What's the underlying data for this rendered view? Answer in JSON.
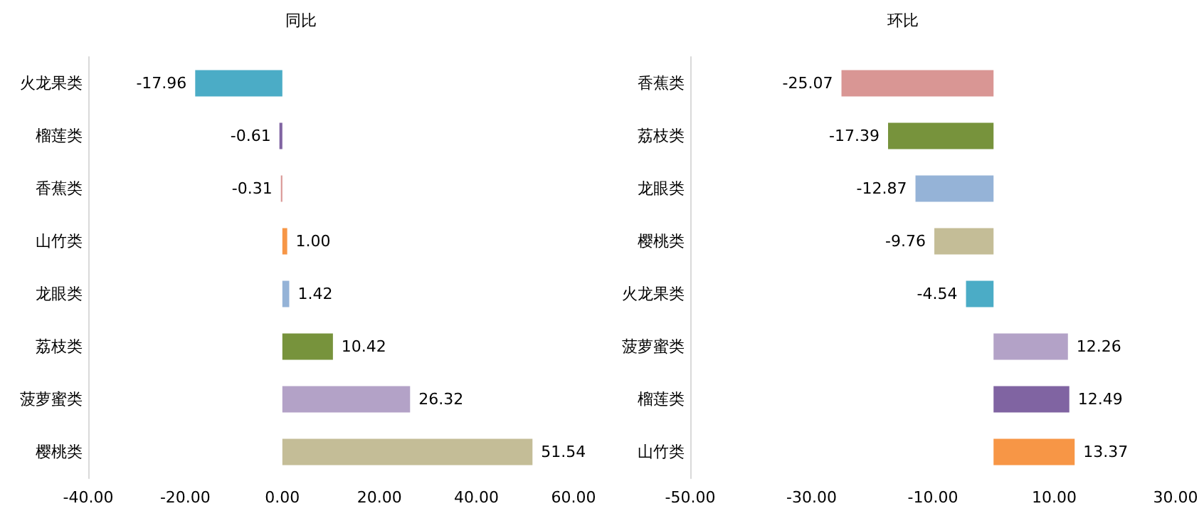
{
  "chart_data": [
    {
      "type": "bar",
      "title": "同比",
      "orientation": "horizontal",
      "grid": false,
      "categories": [
        "火龙果类",
        "榴莲类",
        "香蕉类",
        "山竹类",
        "龙眼类",
        "荔枝类",
        "菠萝蜜类",
        "樱桃类"
      ],
      "values": [
        -17.96,
        -0.61,
        -0.31,
        1.0,
        1.42,
        10.42,
        26.32,
        51.54
      ],
      "value_labels": [
        "-17.96",
        "-0.61",
        "-0.31",
        "1.00",
        "1.42",
        "10.42",
        "26.32",
        "51.54"
      ],
      "colors": [
        "#4bacc6",
        "#8064a2",
        "#d99694",
        "#f79646",
        "#95b3d7",
        "#77933c",
        "#b3a2c7",
        "#c4bd97"
      ],
      "xlim": [
        -40,
        60
      ],
      "xticks": [
        {
          "value": -40,
          "label": "-40.00"
        },
        {
          "value": -20,
          "label": "-20.00"
        },
        {
          "value": 0,
          "label": "0.00"
        },
        {
          "value": 20,
          "label": "20.00"
        },
        {
          "value": 40,
          "label": "40.00"
        },
        {
          "value": 60,
          "label": "60.00"
        }
      ]
    },
    {
      "type": "bar",
      "title": "环比",
      "orientation": "horizontal",
      "grid": false,
      "categories": [
        "香蕉类",
        "荔枝类",
        "龙眼类",
        "樱桃类",
        "火龙果类",
        "菠萝蜜类",
        "榴莲类",
        "山竹类"
      ],
      "values": [
        -25.07,
        -17.39,
        -12.87,
        -9.76,
        -4.54,
        12.26,
        12.49,
        13.37
      ],
      "value_labels": [
        "-25.07",
        "-17.39",
        "-12.87",
        "-9.76",
        "-4.54",
        "12.26",
        "12.49",
        "13.37"
      ],
      "colors": [
        "#d99694",
        "#77933c",
        "#95b3d7",
        "#c4bd97",
        "#4bacc6",
        "#b3a2c7",
        "#8064a2",
        "#f79646"
      ],
      "xlim": [
        -50,
        30
      ],
      "xticks": [
        {
          "value": -50,
          "label": "-50.00"
        },
        {
          "value": -30,
          "label": "-30.00"
        },
        {
          "value": -10,
          "label": "-10.00"
        },
        {
          "value": 10,
          "label": "10.00"
        },
        {
          "value": 30,
          "label": "30.00"
        }
      ]
    }
  ]
}
